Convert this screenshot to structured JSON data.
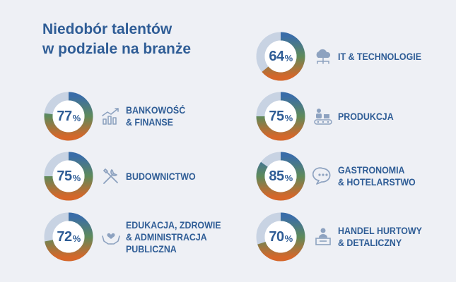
{
  "title_lines": [
    "Niedobór talentów",
    "w podziale na branże"
  ],
  "colors": {
    "track": "#c8d3e3",
    "blue": "#3a6da8",
    "green": "#5e8a5a",
    "orange": "#d5672a",
    "text": "#2f5d96"
  },
  "chart_data": {
    "type": "donut",
    "title": "Niedobór talentów w podziale na branże",
    "series": [
      {
        "label_lines": [
          "BANKOWOŚĆ",
          "& FINANSE"
        ],
        "value": 77,
        "icon": "growth-chart-icon"
      },
      {
        "label_lines": [
          "BUDOWNICTWO"
        ],
        "value": 75,
        "icon": "tools-icon"
      },
      {
        "label_lines": [
          "EDUKACJA, ZDROWIE",
          "& ADMINISTRACJA",
          "PUBLICZNA"
        ],
        "value": 72,
        "icon": "hands-heart-icon"
      },
      {
        "label_lines": [
          "IT & TECHNOLOGIE"
        ],
        "value": 64,
        "icon": "cloud-network-icon"
      },
      {
        "label_lines": [
          "PRODUKCJA"
        ],
        "value": 75,
        "icon": "conveyor-icon"
      },
      {
        "label_lines": [
          "GASTRONOMIA",
          "& HOTELARSTWO"
        ],
        "value": 85,
        "icon": "chat-bubble-icon"
      },
      {
        "label_lines": [
          "HANDEL HURTOWY",
          "& DETALICZNY"
        ],
        "value": 70,
        "icon": "counter-person-icon"
      }
    ]
  }
}
